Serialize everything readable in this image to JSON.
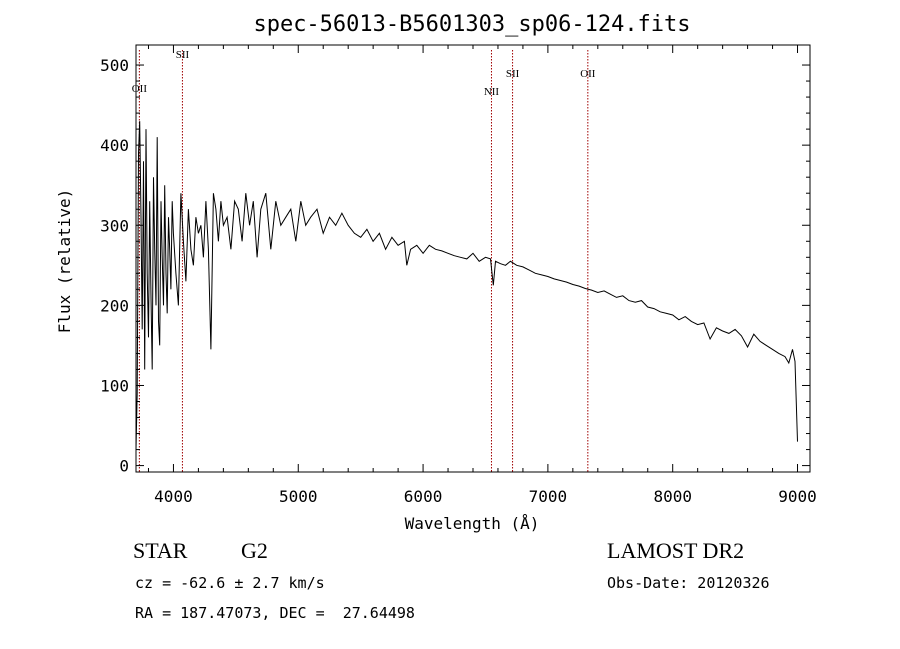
{
  "chart_data": {
    "type": "line",
    "title": "spec-56013-B5601303_sp06-124.fits",
    "xlabel": "Wavelength (Å)",
    "ylabel": "Flux (relative)",
    "xlim": [
      3700,
      9100
    ],
    "ylim": [
      -8,
      525
    ],
    "x_ticks": [
      {
        "value": 4000,
        "label": "4000"
      },
      {
        "value": 5000,
        "label": "5000"
      },
      {
        "value": 6000,
        "label": "6000"
      },
      {
        "value": 7000,
        "label": "7000"
      },
      {
        "value": 8000,
        "label": "8000"
      },
      {
        "value": 9000,
        "label": "9000"
      }
    ],
    "y_ticks": [
      {
        "value": 0,
        "label": "0"
      },
      {
        "value": 100,
        "label": "100"
      },
      {
        "value": 200,
        "label": "200"
      },
      {
        "value": 300,
        "label": "300"
      },
      {
        "value": 400,
        "label": "400"
      },
      {
        "value": 500,
        "label": "500"
      }
    ],
    "grid": false,
    "series": [
      {
        "color": "#000000",
        "x": [
          3700,
          3710,
          3720,
          3730,
          3740,
          3750,
          3760,
          3770,
          3780,
          3790,
          3800,
          3810,
          3820,
          3830,
          3840,
          3850,
          3860,
          3870,
          3880,
          3890,
          3900,
          3910,
          3920,
          3930,
          3940,
          3950,
          3960,
          3970,
          3980,
          3990,
          4000,
          4020,
          4040,
          4060,
          4080,
          4100,
          4120,
          4140,
          4160,
          4180,
          4200,
          4220,
          4240,
          4260,
          4280,
          4300,
          4320,
          4340,
          4360,
          4380,
          4400,
          4430,
          4460,
          4490,
          4520,
          4550,
          4580,
          4610,
          4640,
          4670,
          4700,
          4740,
          4780,
          4820,
          4860,
          4900,
          4940,
          4980,
          5020,
          5060,
          5100,
          5150,
          5200,
          5250,
          5300,
          5350,
          5400,
          5450,
          5500,
          5550,
          5600,
          5650,
          5700,
          5750,
          5800,
          5850,
          5870,
          5900,
          5950,
          6000,
          6050,
          6100,
          6150,
          6200,
          6250,
          6300,
          6350,
          6400,
          6450,
          6500,
          6540,
          6563,
          6580,
          6620,
          6660,
          6700,
          6750,
          6800,
          6850,
          6900,
          6950,
          7000,
          7050,
          7100,
          7150,
          7200,
          7250,
          7300,
          7350,
          7400,
          7450,
          7500,
          7550,
          7600,
          7650,
          7700,
          7750,
          7800,
          7850,
          7900,
          7950,
          8000,
          8050,
          8100,
          8150,
          8200,
          8250,
          8300,
          8350,
          8400,
          8450,
          8500,
          8550,
          8600,
          8650,
          8700,
          8750,
          8800,
          8850,
          8900,
          8930,
          8960,
          8980,
          9000
        ],
        "y": [
          20,
          90,
          390,
          430,
          310,
          170,
          380,
          120,
          420,
          240,
          160,
          330,
          210,
          120,
          360,
          270,
          200,
          410,
          180,
          150,
          330,
          260,
          200,
          350,
          240,
          190,
          310,
          270,
          220,
          330,
          290,
          240,
          200,
          340,
          280,
          230,
          320,
          270,
          250,
          310,
          290,
          300,
          260,
          330,
          270,
          145,
          340,
          320,
          280,
          330,
          300,
          310,
          270,
          330,
          320,
          280,
          340,
          300,
          330,
          260,
          320,
          340,
          270,
          330,
          300,
          310,
          320,
          280,
          330,
          300,
          310,
          320,
          290,
          310,
          300,
          315,
          300,
          290,
          285,
          295,
          280,
          290,
          270,
          285,
          275,
          280,
          250,
          270,
          275,
          265,
          275,
          270,
          268,
          265,
          262,
          260,
          258,
          265,
          255,
          260,
          258,
          225,
          255,
          252,
          250,
          255,
          250,
          248,
          244,
          240,
          238,
          236,
          233,
          231,
          229,
          226,
          224,
          221,
          219,
          216,
          218,
          214,
          210,
          212,
          206,
          204,
          206,
          198,
          196,
          192,
          190,
          188,
          182,
          186,
          180,
          176,
          178,
          158,
          172,
          168,
          165,
          170,
          162,
          148,
          164,
          155,
          150,
          145,
          140,
          136,
          128,
          145,
          130,
          30
        ]
      }
    ],
    "emission_lines": [
      {
        "label": "OII",
        "wavelength": 3727
      },
      {
        "label": "SII",
        "wavelength": 4072
      },
      {
        "label": "NII",
        "wavelength": 6548
      },
      {
        "label": "SII",
        "wavelength": 6717
      },
      {
        "label": "OII",
        "wavelength": 7320
      }
    ]
  },
  "info": {
    "object_class": "STAR",
    "subclass": "G2",
    "survey": "LAMOST DR2",
    "cz_line": "cz = -62.6 ± 2.7 km/s",
    "obs_date": "Obs-Date: 20120326",
    "coords": "RA = 187.47073, DEC =  27.64498"
  }
}
